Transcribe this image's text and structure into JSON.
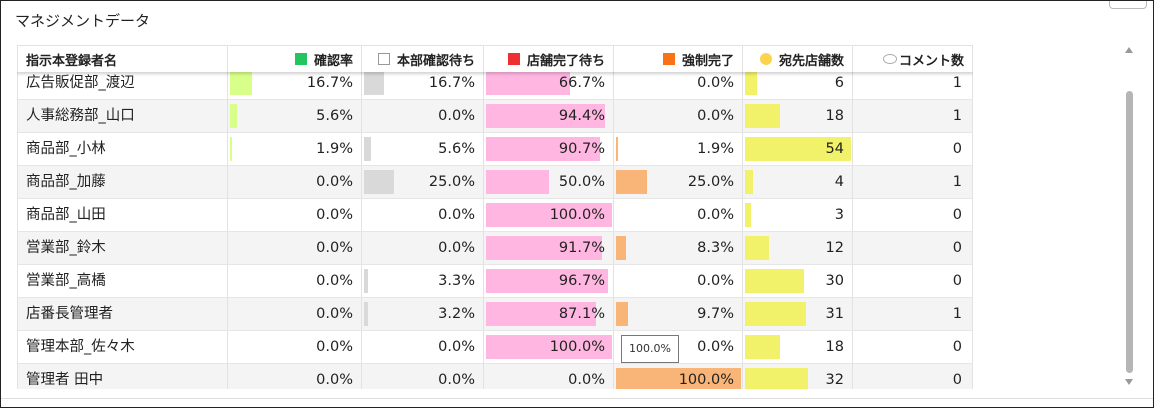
{
  "panel": {
    "title": "マネジメントデータ"
  },
  "colors": {
    "approval": "#d8ff8a",
    "hq_pending": "#d9d9d9",
    "store_pending": "#ffb6e1",
    "forced": "#f9b577",
    "stores": "#f1f16a"
  },
  "headers": {
    "name": "指示本登録者名",
    "approval": "確認率",
    "hq_pending": "本部確認待ち",
    "store_pending": "店舗完了待ち",
    "forced": "強制完了",
    "stores": "宛先店舗数",
    "comments": "コメント数"
  },
  "legend_swatches": {
    "approval": "#22c55e",
    "hq_pending": "#ffffff",
    "store_pending": "#ef3030",
    "forced": "#f97316",
    "stores": "#fcd34d"
  },
  "rows": [
    {
      "name": "広告販促部_渡辺",
      "approval": "16.7%",
      "approval_v": 16.7,
      "hq_pending": "16.7%",
      "hq_pending_v": 16.7,
      "store_pending": "66.7%",
      "store_pending_v": 66.7,
      "forced": "0.0%",
      "forced_v": 0,
      "stores": "6",
      "stores_v": 6,
      "comments": "1"
    },
    {
      "name": "人事総務部_山口",
      "approval": "5.6%",
      "approval_v": 5.6,
      "hq_pending": "0.0%",
      "hq_pending_v": 0,
      "store_pending": "94.4%",
      "store_pending_v": 94.4,
      "forced": "0.0%",
      "forced_v": 0,
      "stores": "18",
      "stores_v": 18,
      "comments": "1"
    },
    {
      "name": "商品部_小林",
      "approval": "1.9%",
      "approval_v": 1.9,
      "hq_pending": "5.6%",
      "hq_pending_v": 5.6,
      "store_pending": "90.7%",
      "store_pending_v": 90.7,
      "forced": "1.9%",
      "forced_v": 1.9,
      "stores": "54",
      "stores_v": 54,
      "comments": "0"
    },
    {
      "name": "商品部_加藤",
      "approval": "0.0%",
      "approval_v": 0,
      "hq_pending": "25.0%",
      "hq_pending_v": 25,
      "store_pending": "50.0%",
      "store_pending_v": 50,
      "forced": "25.0%",
      "forced_v": 25,
      "stores": "4",
      "stores_v": 4,
      "comments": "1"
    },
    {
      "name": "商品部_山田",
      "approval": "0.0%",
      "approval_v": 0,
      "hq_pending": "0.0%",
      "hq_pending_v": 0,
      "store_pending": "100.0%",
      "store_pending_v": 100,
      "forced": "0.0%",
      "forced_v": 0,
      "stores": "3",
      "stores_v": 3,
      "comments": "0"
    },
    {
      "name": "営業部_鈴木",
      "approval": "0.0%",
      "approval_v": 0,
      "hq_pending": "0.0%",
      "hq_pending_v": 0,
      "store_pending": "91.7%",
      "store_pending_v": 91.7,
      "forced": "8.3%",
      "forced_v": 8.3,
      "stores": "12",
      "stores_v": 12,
      "comments": "0"
    },
    {
      "name": "営業部_高橋",
      "approval": "0.0%",
      "approval_v": 0,
      "hq_pending": "3.3%",
      "hq_pending_v": 3.3,
      "store_pending": "96.7%",
      "store_pending_v": 96.7,
      "forced": "0.0%",
      "forced_v": 0,
      "stores": "30",
      "stores_v": 30,
      "comments": "0"
    },
    {
      "name": "店番長管理者",
      "approval": "0.0%",
      "approval_v": 0,
      "hq_pending": "3.2%",
      "hq_pending_v": 3.2,
      "store_pending": "87.1%",
      "store_pending_v": 87.1,
      "forced": "9.7%",
      "forced_v": 9.7,
      "stores": "31",
      "stores_v": 31,
      "comments": "1"
    },
    {
      "name": "管理本部_佐々木",
      "approval": "0.0%",
      "approval_v": 0,
      "hq_pending": "0.0%",
      "hq_pending_v": 0,
      "store_pending": "100.0%",
      "store_pending_v": 100,
      "forced": "0.0%",
      "forced_v": 0,
      "stores": "18",
      "stores_v": 18,
      "comments": "0"
    },
    {
      "name": "管理者 田中",
      "approval": "0.0%",
      "approval_v": 0,
      "hq_pending": "0.0%",
      "hq_pending_v": 0,
      "store_pending": "0.0%",
      "store_pending_v": 0,
      "forced": "100.0%",
      "forced_v": 100,
      "stores": "32",
      "stores_v": 32,
      "comments": "0"
    }
  ],
  "stores_max": 54,
  "tooltip": {
    "text": "100.0%"
  }
}
